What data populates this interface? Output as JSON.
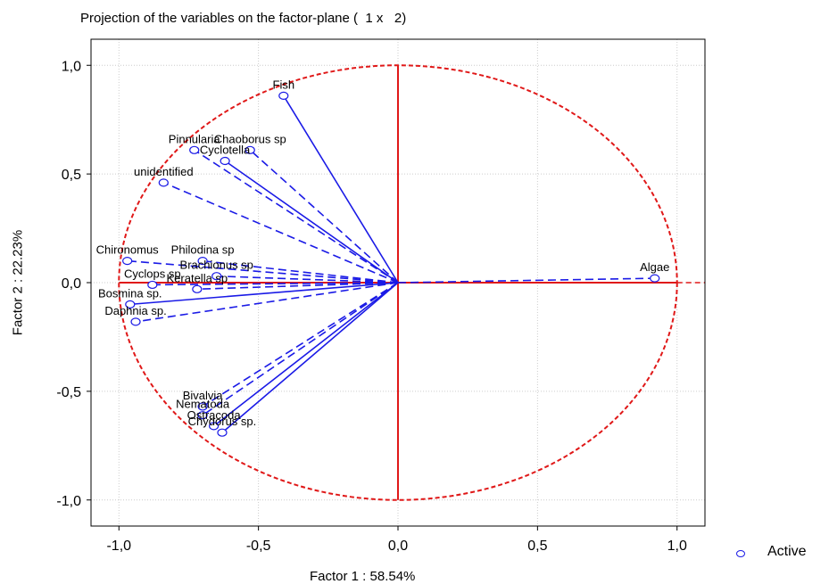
{
  "chart_data": {
    "type": "scatter",
    "title": "Projection of the variables on the factor-plane (  1 x   2)",
    "xlabel": "Factor 1 : 58.54%",
    "ylabel": "Factor 2 : 22.23%",
    "xlim": [
      -1.1,
      1.1
    ],
    "ylim": [
      -1.12,
      1.12
    ],
    "xticks": [
      -1.0,
      -0.5,
      0.0,
      0.5,
      1.0
    ],
    "xtick_labels": [
      "-1,0",
      "-0,5",
      "0,0",
      "0,5",
      "1,0"
    ],
    "yticks": [
      -1.0,
      -0.5,
      0.0,
      0.5,
      1.0
    ],
    "ytick_labels": [
      "-1,0",
      "-0,5",
      "0,0",
      "0,5",
      "1,0"
    ],
    "grid": true,
    "unit_circle": true,
    "legend": {
      "position": "bottom-right",
      "entries": [
        "Active"
      ]
    },
    "colors": {
      "points": "#1a1ae6",
      "circle": "#e01818",
      "axes": "#e01818",
      "grid": "#cccccc"
    },
    "points": [
      {
        "label": "Fish",
        "x": -0.41,
        "y": 0.86,
        "style": "solid"
      },
      {
        "label": "Pinnularia",
        "x": -0.73,
        "y": 0.61,
        "style": "dashed"
      },
      {
        "label": "Chaoborus sp",
        "x": -0.53,
        "y": 0.61,
        "style": "dashed"
      },
      {
        "label": "Cyclotella",
        "x": -0.62,
        "y": 0.56,
        "style": "solid"
      },
      {
        "label": "unidentified",
        "x": -0.84,
        "y": 0.46,
        "style": "dashed"
      },
      {
        "label": "Philodina sp",
        "x": -0.7,
        "y": 0.1,
        "style": "dashed"
      },
      {
        "label": "Chironomus",
        "x": -0.97,
        "y": 0.1,
        "style": "dashed"
      },
      {
        "label": "Brachionus sp",
        "x": -0.65,
        "y": 0.03,
        "style": "dashed"
      },
      {
        "label": "Cyclops sp",
        "x": -0.88,
        "y": -0.01,
        "style": "dashed"
      },
      {
        "label": "Keratella sp",
        "x": -0.72,
        "y": -0.03,
        "style": "dashed"
      },
      {
        "label": "Bosmina sp.",
        "x": -0.96,
        "y": -0.1,
        "style": "solid"
      },
      {
        "label": "Daphnia sp.",
        "x": -0.94,
        "y": -0.18,
        "style": "dashed"
      },
      {
        "label": "Bivalvia",
        "x": -0.7,
        "y": -0.57,
        "style": "dashed"
      },
      {
        "label": "Nematoda",
        "x": -0.7,
        "y": -0.61,
        "style": "dashed"
      },
      {
        "label": "Ostracoda",
        "x": -0.66,
        "y": -0.66,
        "style": "solid"
      },
      {
        "label": "Chydorus sp.",
        "x": -0.63,
        "y": -0.69,
        "style": "solid"
      },
      {
        "label": "Algae",
        "x": 0.92,
        "y": 0.02,
        "style": "dashed"
      }
    ]
  }
}
